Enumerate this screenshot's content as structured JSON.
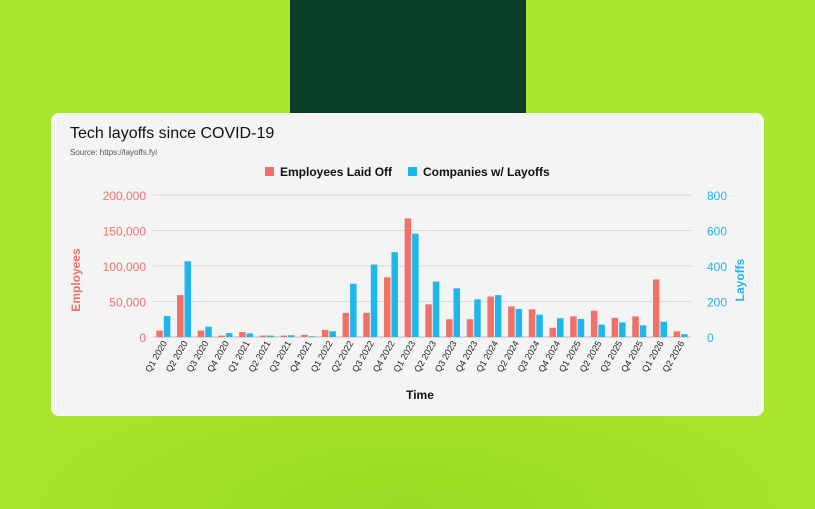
{
  "chart_data": {
    "type": "bar",
    "title": "Tech layoffs since COVID-19",
    "subtitle": "Source: https://layoffs.fyi",
    "xlabel": "Time",
    "ylabel_left": "Employees",
    "ylabel_right": "Layoffs",
    "ylim_left": [
      0,
      200000
    ],
    "ylim_right": [
      0,
      800
    ],
    "yticks_left": [
      "0",
      "50,000",
      "100,000",
      "150,000",
      "200,000"
    ],
    "yticks_right": [
      "0",
      "200",
      "400",
      "600",
      "800"
    ],
    "legend_position": "top-center",
    "categories": [
      "Q1 2020",
      "Q2 2020",
      "Q3 2020",
      "Q4 2020",
      "Q1 2021",
      "Q2 2021",
      "Q3 2021",
      "Q4 2021",
      "Q1 2022",
      "Q2 2022",
      "Q3 2022",
      "Q4 2022",
      "Q1 2023",
      "Q2 2023",
      "Q3 2023",
      "Q4 2023",
      "Q1 2024",
      "Q2 2024",
      "Q3 2024",
      "Q4 2024",
      "Q1 2025",
      "Q2 2025",
      "Q3 2025",
      "Q4 2025",
      "Q1 2026",
      "Q2 2026"
    ],
    "series": [
      {
        "name": "Employees Laid Off",
        "axis": "left",
        "color": "#f07167",
        "values": [
          9000,
          59000,
          9000,
          2000,
          7000,
          2000,
          2000,
          3000,
          10000,
          34000,
          34000,
          84000,
          167000,
          46000,
          25000,
          25000,
          57000,
          43000,
          39000,
          13000,
          29000,
          37000,
          27000,
          29000,
          81000,
          8000
        ]
      },
      {
        "name": "Companies w/ Layoffs",
        "axis": "right",
        "color": "#1fb6ee",
        "values": [
          118,
          427,
          58,
          22,
          20,
          8,
          10,
          4,
          32,
          300,
          408,
          478,
          582,
          312,
          274,
          212,
          236,
          158,
          126,
          106,
          102,
          70,
          82,
          66,
          86,
          16
        ]
      }
    ]
  }
}
